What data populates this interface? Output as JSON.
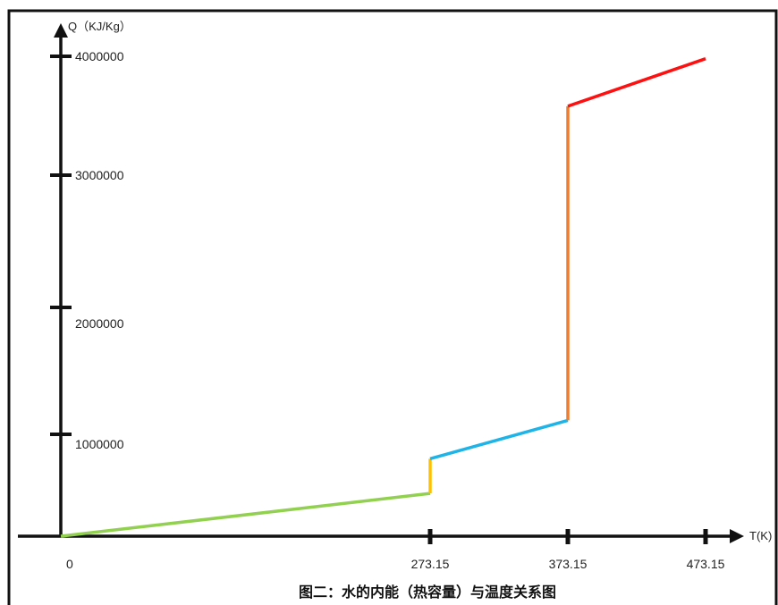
{
  "chart_data": {
    "type": "line",
    "caption": "图二：水的内能（热容量）与温度关系图",
    "xlabel": "T(K)",
    "ylabel": "Q（KJ/Kg）",
    "x_ticks": [
      "0",
      "273.15",
      "373.15",
      "473.15"
    ],
    "y_ticks": [
      "1000000",
      "2000000",
      "3000000",
      "4000000"
    ],
    "xlim": [
      0,
      500
    ],
    "ylim": [
      0,
      4000000
    ],
    "grid": false,
    "series": [
      {
        "color": "#92d050",
        "points": [
          [
            0,
            0
          ],
          [
            273.15,
            420000
          ]
        ]
      },
      {
        "color": "#ffc000",
        "points": [
          [
            273.15,
            420000
          ],
          [
            273.15,
            760000
          ]
        ]
      },
      {
        "color": "#1eb4e8",
        "points": [
          [
            273.15,
            760000
          ],
          [
            373.15,
            1110000
          ]
        ]
      },
      {
        "color": "#ed7d31",
        "points": [
          [
            373.15,
            1110000
          ],
          [
            373.15,
            3580000
          ]
        ]
      },
      {
        "color": "#ff1010",
        "points": [
          [
            373.15,
            3580000
          ],
          [
            473.15,
            3980000
          ]
        ]
      }
    ]
  }
}
